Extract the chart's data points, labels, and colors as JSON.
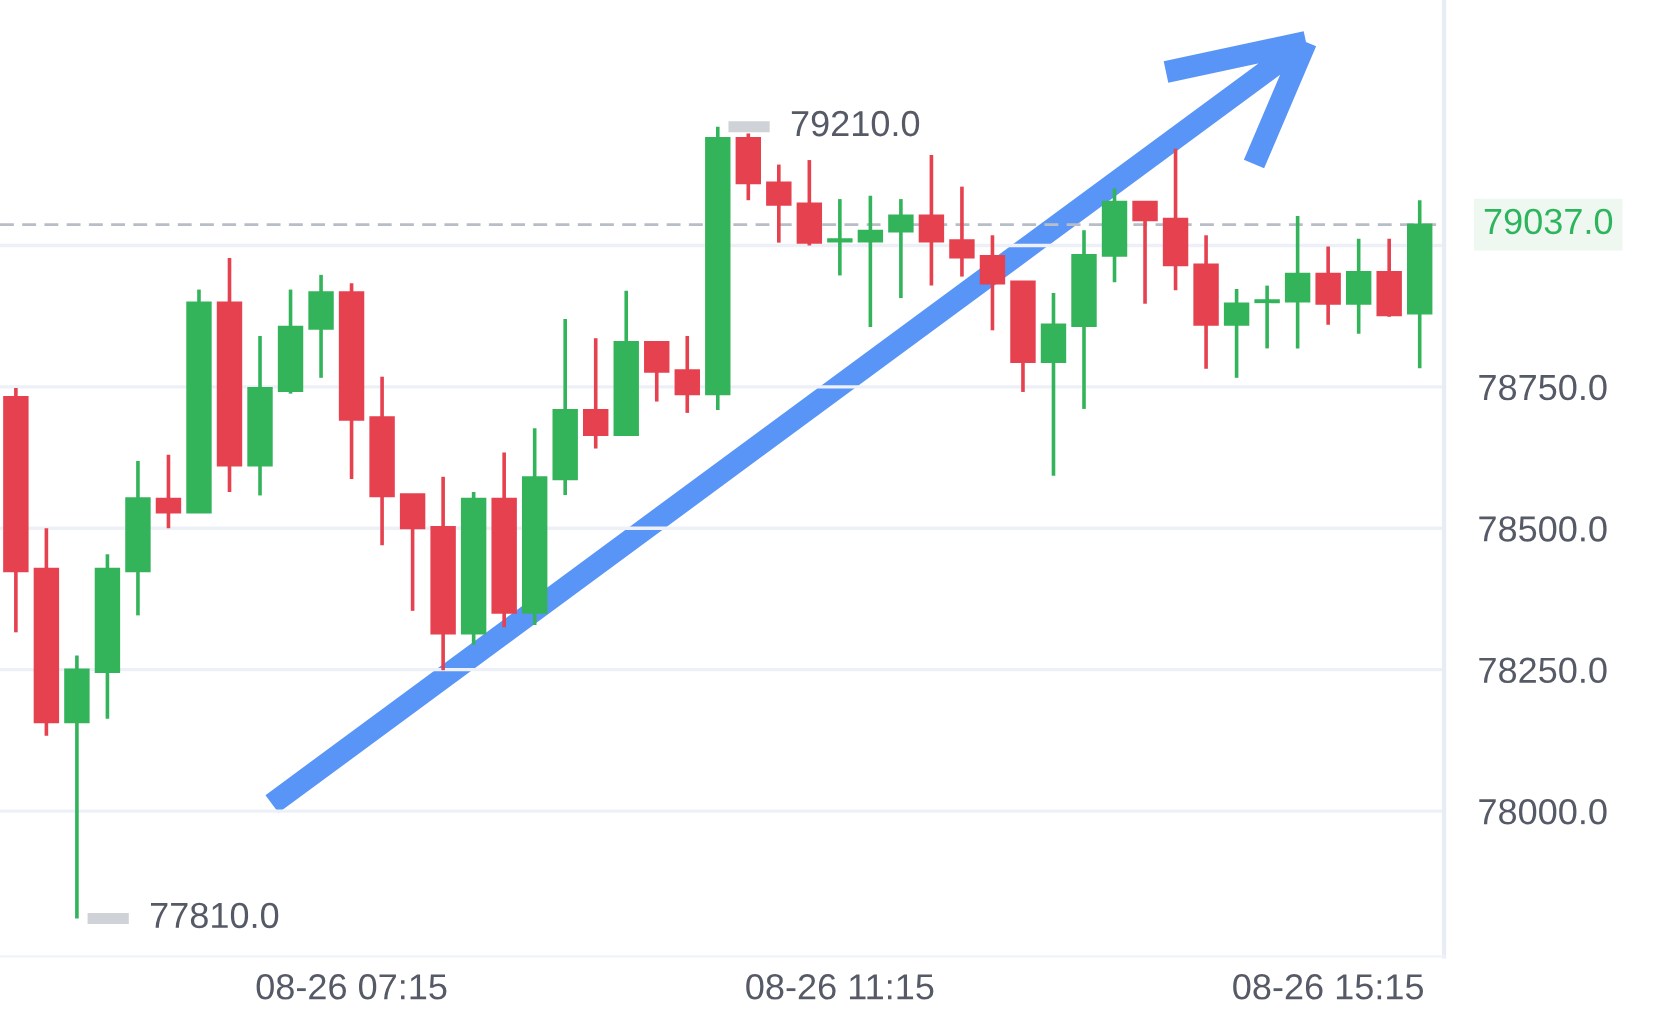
{
  "chart_data": {
    "type": "candlestick",
    "categories": [
      null,
      null,
      null,
      null,
      null,
      null,
      null,
      null,
      null,
      null,
      null,
      "08-26 07:15",
      null,
      null,
      null,
      null,
      null,
      null,
      null,
      null,
      null,
      null,
      null,
      null,
      null,
      null,
      null,
      "08-26 11:15",
      null,
      null,
      null,
      null,
      null,
      null,
      null,
      null,
      null,
      null,
      null,
      null,
      null,
      null,
      null,
      "08-26 15:15",
      null,
      null,
      null
    ],
    "ohlc": [
      [
        78732,
        78748,
        78316,
        78424
      ],
      [
        78428,
        78500,
        78133,
        78157
      ],
      [
        78157,
        78275,
        77810,
        78250
      ],
      [
        78246,
        78454,
        78163,
        78428
      ],
      [
        78424,
        78619,
        78346,
        78553
      ],
      [
        78552,
        78630,
        78500,
        78528
      ],
      [
        78528,
        78922,
        78528,
        78899
      ],
      [
        78899,
        78978,
        78564,
        78611
      ],
      [
        78611,
        78840,
        78558,
        78748
      ],
      [
        78743,
        78922,
        78738,
        78856
      ],
      [
        78853,
        78948,
        78766,
        78917
      ],
      [
        78917,
        78933,
        78587,
        78692
      ],
      [
        78696,
        78768,
        78470,
        78557
      ],
      [
        78560,
        78560,
        78354,
        78500
      ],
      [
        78502,
        78591,
        78249,
        78314
      ],
      [
        78314,
        78564,
        78294,
        78552
      ],
      [
        78552,
        78634,
        78325,
        78351
      ],
      [
        78351,
        78677,
        78329,
        78590
      ],
      [
        78587,
        78870,
        78559,
        78709
      ],
      [
        78709,
        78836,
        78641,
        78665
      ],
      [
        78665,
        78920,
        78665,
        78829
      ],
      [
        78829,
        78829,
        78724,
        78777
      ],
      [
        78779,
        78840,
        78704,
        78737
      ],
      [
        78737,
        79210,
        78709,
        79190
      ],
      [
        79190,
        79198,
        79080,
        79110
      ],
      [
        79111,
        79143,
        79005,
        79072
      ],
      [
        79074,
        79151,
        79000,
        79005
      ],
      [
        79007,
        79082,
        78947,
        79011
      ],
      [
        79007,
        79088,
        78856,
        79026
      ],
      [
        79025,
        79082,
        78907,
        79053
      ],
      [
        79053,
        79160,
        78929,
        79007
      ],
      [
        79009,
        79104,
        78945,
        78979
      ],
      [
        78981,
        79018,
        78850,
        78933
      ],
      [
        78936,
        78936,
        78741,
        78794
      ],
      [
        78794,
        78916,
        78593,
        78860
      ],
      [
        78858,
        79027,
        78711,
        78983
      ],
      [
        78982,
        79101,
        78935,
        79077
      ],
      [
        79077,
        79078,
        78897,
        79045
      ],
      [
        79047,
        79171,
        78921,
        78965
      ],
      [
        78966,
        79018,
        78782,
        78860
      ],
      [
        78860,
        78923,
        78766,
        78897
      ],
      [
        78900,
        78929,
        78818,
        78903
      ],
      [
        78901,
        79052,
        78818,
        78950
      ],
      [
        78950,
        78998,
        78860,
        78897
      ],
      [
        78897,
        79012,
        78844,
        78953
      ],
      [
        78953,
        79012,
        78874,
        78877
      ],
      [
        78880,
        79080,
        78783,
        79037
      ]
    ],
    "colors": [
      "#e5414f",
      "#e5414f",
      "#34b45a",
      "#34b45a",
      "#34b45a",
      "#e5414f",
      "#34b45a",
      "#e5414f",
      "#34b45a",
      "#34b45a",
      "#34b45a",
      "#e5414f",
      "#e5414f",
      "#e5414f",
      "#e5414f",
      "#34b45a",
      "#e5414f",
      "#34b45a",
      "#34b45a",
      "#e5414f",
      "#34b45a",
      "#e5414f",
      "#e5414f",
      "#34b45a",
      "#e5414f",
      "#e5414f",
      "#e5414f",
      "#34b45a",
      "#34b45a",
      "#34b45a",
      "#e5414f",
      "#e5414f",
      "#e5414f",
      "#e5414f",
      "#34b45a",
      "#34b45a",
      "#34b45a",
      "#e5414f",
      "#e5414f",
      "#e5414f",
      "#34b45a",
      "#34b45a",
      "#34b45a",
      "#e5414f",
      "#34b45a",
      "#e5414f",
      "#34b45a"
    ],
    "ylim": [
      77743,
      79434
    ],
    "yticks": [
      {
        "value": 78000,
        "label": "78000.0"
      },
      {
        "value": 78250,
        "label": "78250.0"
      },
      {
        "value": 78500,
        "label": "78500.0"
      },
      {
        "value": 78750,
        "label": "78750.0"
      },
      {
        "value": 79000,
        "label": null
      }
    ],
    "grid": "y",
    "ref_lines": [
      {
        "axis": "y",
        "value": 79037,
        "label": "79037.0",
        "color": "#b8bec8",
        "line_style": "dashed"
      }
    ],
    "annotations": [
      "79210.0",
      "77810.0"
    ]
  }
}
